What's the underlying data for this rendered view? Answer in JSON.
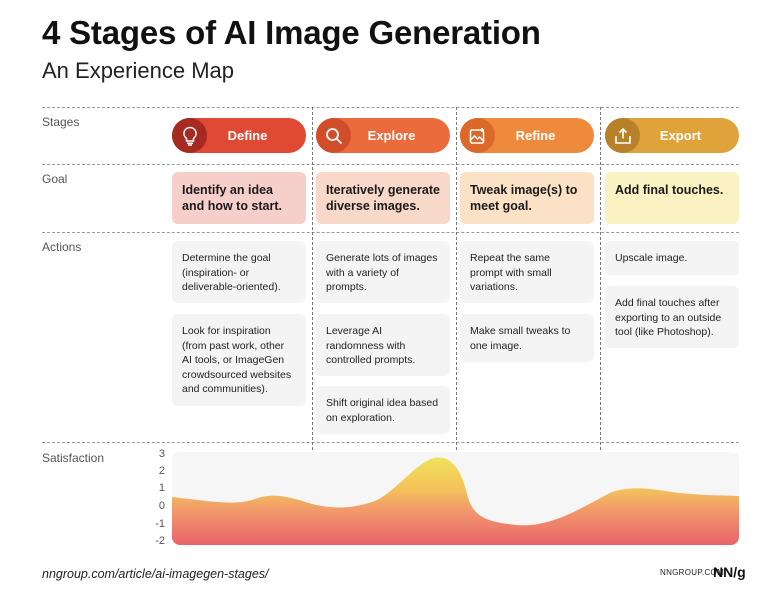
{
  "header": {
    "title": "4 Stages of AI Image Generation",
    "subtitle": "An Experience Map"
  },
  "rows": {
    "stages": "Stages",
    "goal": "Goal",
    "actions": "Actions",
    "satisfaction": "Satisfaction"
  },
  "stages": [
    {
      "name": "Define",
      "icon": "lightbulb-icon",
      "color": "#E04A35",
      "icon_color": "#A52A22",
      "goal": "Identify an idea and how to start.",
      "goal_bg": "#F6CFCB",
      "actions": [
        "Determine the goal (inspiration- or deliverable-oriented).",
        "Look for inspiration (from past work, other AI tools, or ImageGen crowdsourced websites and communities)."
      ]
    },
    {
      "name": "Explore",
      "icon": "search-icon",
      "color": "#EC6B3C",
      "icon_color": "#D24E2A",
      "goal": "Iteratively generate diverse images.",
      "goal_bg": "#F8D8C9",
      "actions": [
        "Generate lots of images with a variety of prompts.",
        "Leverage AI randomness with controlled prompts.",
        "Shift original idea based on exploration."
      ]
    },
    {
      "name": "Refine",
      "icon": "image-edit-icon",
      "color": "#EF8A3C",
      "icon_color": "#DB6A2A",
      "goal": "Tweak image(s) to meet goal.",
      "goal_bg": "#FBE2C6",
      "actions": [
        "Repeat the same prompt with small variations.",
        "Make small tweaks to one image."
      ]
    },
    {
      "name": "Export",
      "icon": "export-icon",
      "color": "#E0A33C",
      "icon_color": "#B7812A",
      "goal": "Add final touches.",
      "goal_bg": "#FBF2C4",
      "actions": [
        "Upscale image.",
        "Add final touches after exporting to an outside tool (like Photoshop)."
      ]
    }
  ],
  "satisfaction": {
    "ticks": [
      "3",
      "2",
      "1",
      "0",
      "-1",
      "-2"
    ]
  },
  "footer": {
    "url": "nngroup.com/article/ai-imagegen-stages/",
    "brand": "NNGROUP.COM",
    "logo": "NN/g"
  }
}
